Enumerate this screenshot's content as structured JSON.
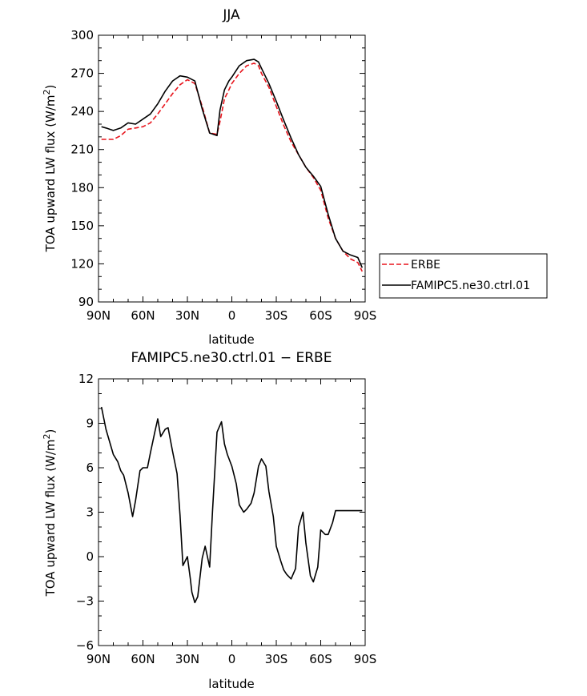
{
  "chart_data": [
    {
      "type": "line",
      "title": "JJA",
      "xlabel": "latitude",
      "ylabel": "TOA upward LW flux (W/m²)",
      "ylabel_main": "TOA upward LW flux (W/m",
      "ylabel_exponent": "2",
      "ylabel_close": ")",
      "x_direction": "north-to-south",
      "xlim": [
        90,
        -90
      ],
      "ylim": [
        90,
        300
      ],
      "xticks": [
        90,
        60,
        30,
        0,
        -30,
        -60,
        -90
      ],
      "xtick_labels": [
        "90N",
        "60N",
        "30N",
        "0",
        "30S",
        "60S",
        "90S"
      ],
      "yticks": [
        90,
        120,
        150,
        180,
        210,
        240,
        270,
        300
      ],
      "ytick_labels": [
        "90",
        "120",
        "150",
        "180",
        "210",
        "240",
        "270",
        "300"
      ],
      "x": [
        88,
        85,
        80,
        75,
        70,
        65,
        60,
        55,
        50,
        45,
        40,
        35,
        30,
        25,
        20,
        15,
        10,
        8,
        5,
        2,
        0,
        -5,
        -10,
        -15,
        -18,
        -20,
        -25,
        -30,
        -35,
        -40,
        -45,
        -50,
        -55,
        -60,
        -65,
        -70,
        -75,
        -80,
        -85,
        -88
      ],
      "series": [
        {
          "name": "ERBE",
          "color": "#e8141c",
          "dash": true,
          "values": [
            218,
            218,
            218,
            221,
            226,
            227,
            228,
            231,
            238,
            246,
            254,
            261,
            265,
            262,
            244,
            223,
            222,
            232,
            250,
            257,
            262,
            270,
            276,
            278,
            276,
            270,
            259,
            244,
            229,
            216,
            206,
            196,
            188,
            178,
            156,
            140,
            130,
            124,
            121,
            114
          ]
        },
        {
          "name": "FAMIPC5.ne30.ctrl.01",
          "color": "#000000",
          "dash": false,
          "values": [
            228,
            227,
            225,
            227,
            231,
            230,
            234,
            238,
            246,
            256,
            264,
            268,
            267,
            264,
            242,
            223,
            221,
            241,
            257,
            264,
            267,
            276,
            280,
            281,
            279,
            274,
            262,
            248,
            233,
            219,
            206,
            196,
            189,
            181,
            159,
            140,
            130,
            127,
            125,
            117
          ]
        }
      ],
      "legend_position": "right"
    },
    {
      "type": "line",
      "title": "FAMIPC5.ne30.ctrl.01  −  ERBE",
      "xlabel": "latitude",
      "ylabel": "TOA upward LW flux (W/m²)",
      "ylabel_main": "TOA upward LW flux (W/m",
      "ylabel_exponent": "2",
      "ylabel_close": ")",
      "x_direction": "north-to-south",
      "xlim": [
        90,
        -90
      ],
      "ylim": [
        -6,
        12
      ],
      "xticks": [
        90,
        60,
        30,
        0,
        -30,
        -60,
        -90
      ],
      "xtick_labels": [
        "90N",
        "60N",
        "30N",
        "0",
        "30S",
        "60S",
        "90S"
      ],
      "yticks": [
        -6,
        -3,
        0,
        3,
        6,
        9,
        12
      ],
      "ytick_labels": [
        "−6",
        "−3",
        "0",
        "3",
        "6",
        "9",
        "12"
      ],
      "series": [
        {
          "name": "",
          "color": "#000000",
          "dash": false,
          "x": [
            88,
            85,
            80,
            77,
            75,
            73,
            70,
            67,
            65,
            62,
            60,
            57,
            55,
            52,
            50,
            48,
            45,
            43,
            40,
            37,
            35,
            33,
            30,
            28,
            27,
            25,
            23,
            20,
            18,
            15,
            13,
            10,
            7,
            5,
            3,
            0,
            -3,
            -5,
            -8,
            -10,
            -13,
            -15,
            -18,
            -20,
            -23,
            -25,
            -28,
            -30,
            -33,
            -35,
            -37,
            -40,
            -43,
            -45,
            -48,
            -50,
            -53,
            -55,
            -58,
            -60,
            -63,
            -65,
            -68,
            -70,
            -73,
            -75,
            -77,
            -80,
            -83,
            -85,
            -88
          ],
          "values": [
            10.1,
            8.6,
            6.9,
            6.4,
            5.8,
            5.5,
            4.3,
            2.7,
            3.8,
            5.8,
            6.0,
            6.0,
            7.0,
            8.4,
            9.3,
            8.1,
            8.6,
            8.7,
            7.1,
            5.6,
            2.8,
            -0.6,
            0,
            -1.5,
            -2.4,
            -3.1,
            -2.7,
            -0.1,
            0.7,
            -0.7,
            3.1,
            8.4,
            9.1,
            7.6,
            6.9,
            6.1,
            4.9,
            3.5,
            3.0,
            3.2,
            3.6,
            4.3,
            6.1,
            6.6,
            6.1,
            4.4,
            2.7,
            0.7,
            -0.3,
            -0.9,
            -1.2,
            -1.5,
            -0.8,
            2.0,
            3.0,
            0.9,
            -1.3,
            -1.7,
            -0.7,
            1.8,
            1.5,
            1.5,
            2.3,
            3.1,
            3.1,
            3.1,
            3.1,
            3.1,
            3.1,
            3.1,
            3.1
          ]
        }
      ]
    }
  ]
}
